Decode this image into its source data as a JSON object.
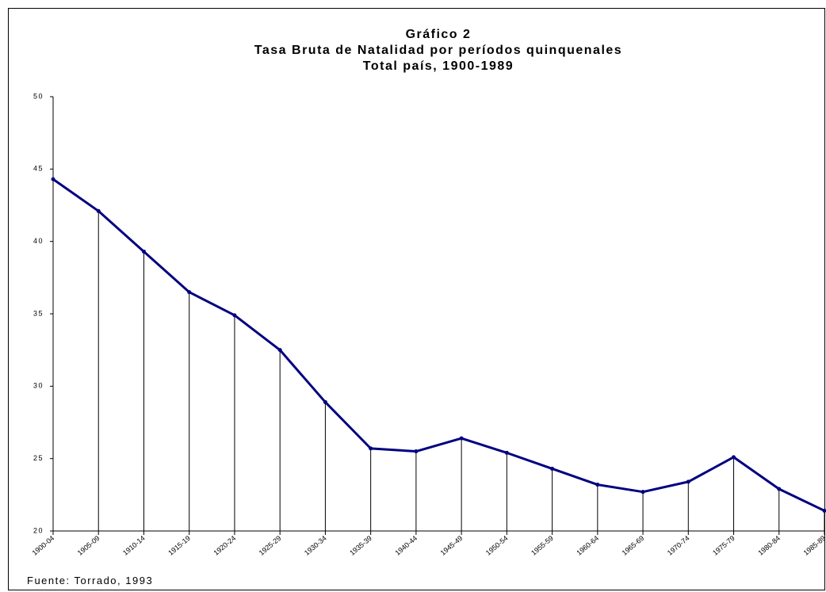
{
  "chart_data": {
    "type": "line",
    "title": [
      "Gráfico 2",
      "Tasa Bruta de Natalidad por períodos quinquenales",
      "Total país, 1900-1989"
    ],
    "source": "Fuente: Torrado, 1993",
    "categories": [
      "1900-04",
      "1905-09",
      "1910-14",
      "1915-19",
      "1920-24",
      "1925-29",
      "1930-34",
      "1935-39",
      "1940-44",
      "1945-49",
      "1950-54",
      "1955-59",
      "1960-64",
      "1965-69",
      "1970-74",
      "1975-79",
      "1980-84",
      "1985-89"
    ],
    "series": [
      {
        "name": "Tasa Bruta de Natalidad",
        "color": "#000080",
        "values": [
          44.3,
          42.1,
          39.3,
          36.5,
          34.9,
          32.5,
          28.9,
          25.7,
          25.5,
          26.4,
          25.4,
          24.3,
          23.2,
          22.7,
          23.4,
          25.1,
          22.9,
          21.4
        ]
      }
    ],
    "ylim": [
      20,
      50
    ],
    "yticks": [
      20,
      25,
      30,
      35,
      40,
      45,
      50
    ],
    "drop_lines": true
  }
}
